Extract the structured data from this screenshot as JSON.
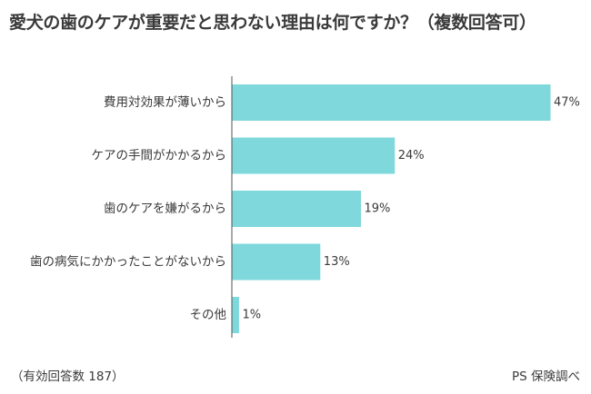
{
  "title": "愛犬の歯のケアが重要だと思わない理由は何ですか？（複数回答可）",
  "footnote": "（有効回答数 187）",
  "source": "PS 保険調べ",
  "colors": {
    "bar": "#7fd8dc",
    "axis": "#555555"
  },
  "chart_data": {
    "type": "bar",
    "orientation": "horizontal",
    "categories": [
      "費用対効果が薄いから",
      "ケアの手間がかかるから",
      "歯のケアを嫌がるから",
      "歯の病気にかかったことがないから",
      "その他"
    ],
    "values": [
      47,
      24,
      19,
      13,
      1
    ],
    "value_labels": [
      "47%",
      "24%",
      "19%",
      "13%",
      "1%"
    ],
    "unit": "%",
    "xlim": [
      0,
      47
    ],
    "grid": false,
    "legend": "none"
  }
}
